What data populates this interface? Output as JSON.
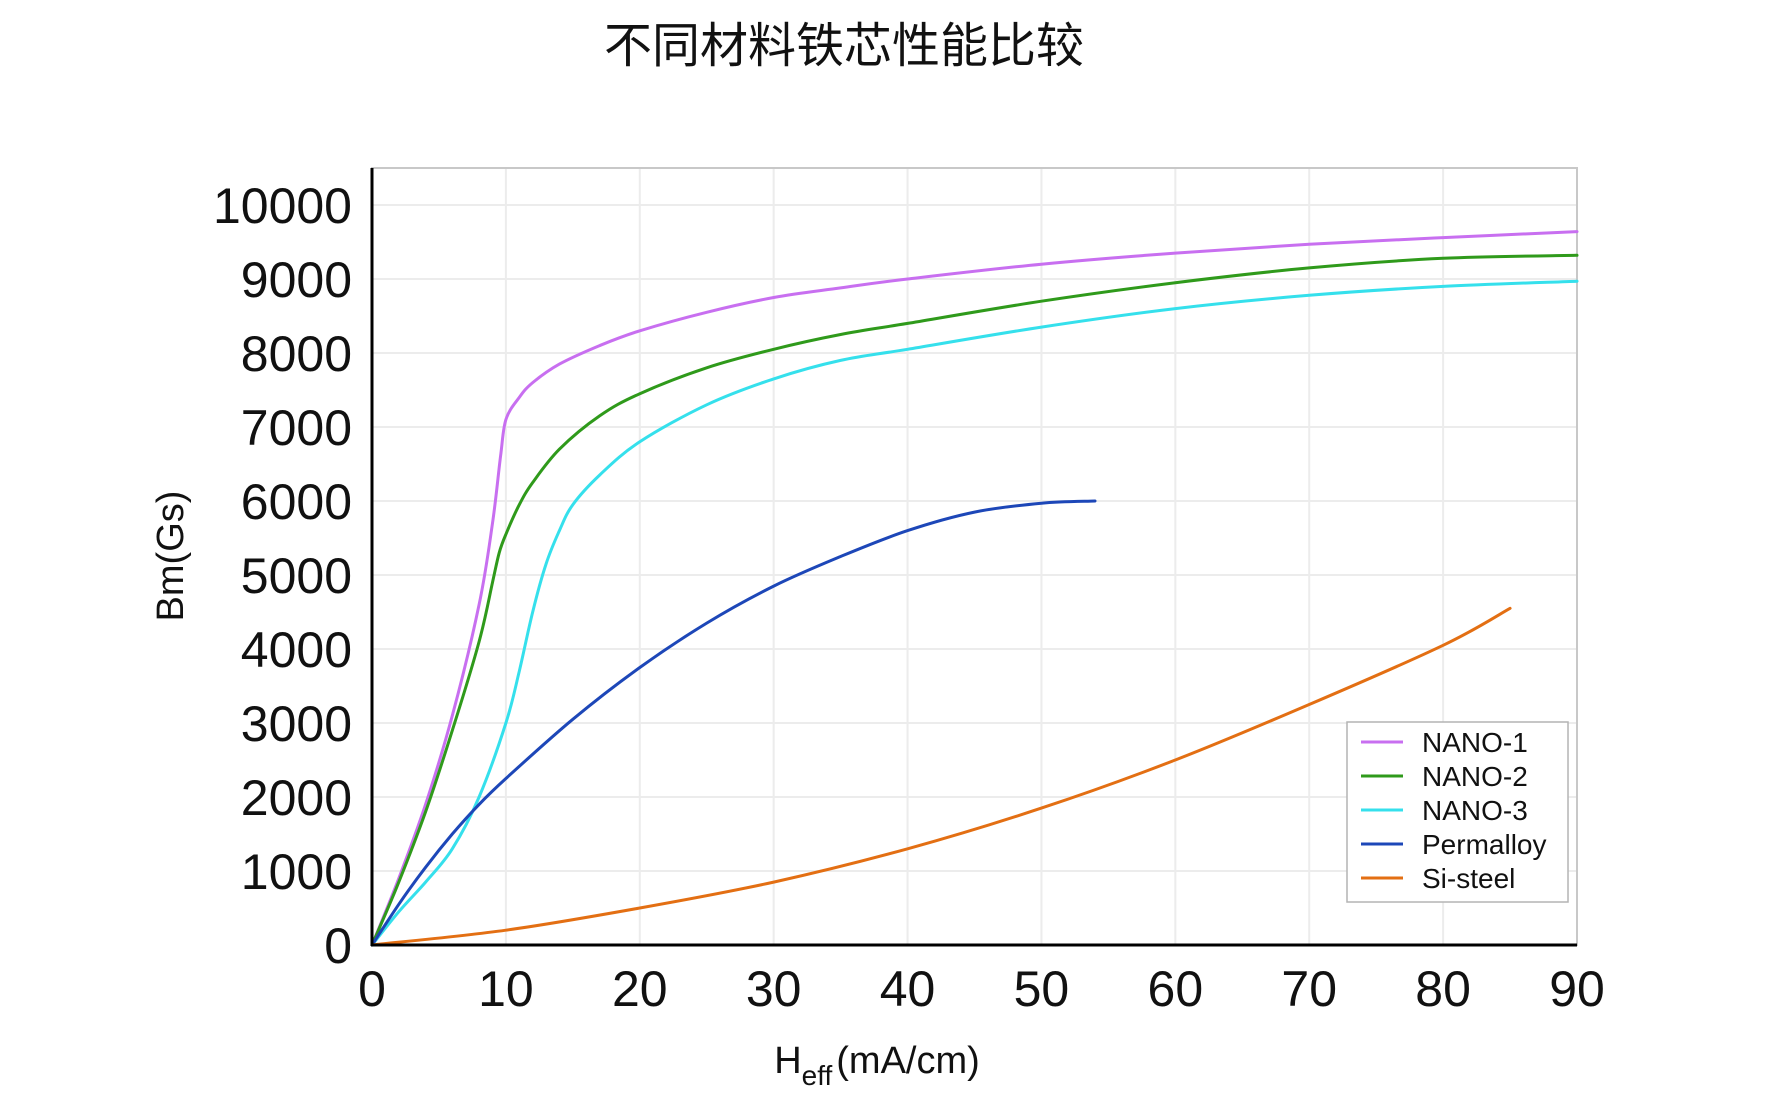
{
  "chart_data": {
    "type": "line",
    "title": "不同材料铁芯性能比较",
    "xlabel": {
      "main": "H",
      "sub": "eff",
      "rest": "(mA/cm)"
    },
    "ylabel": "Bm(Gs)",
    "xlim": [
      0,
      90
    ],
    "ylim": [
      0,
      10500
    ],
    "xticks": [
      "0",
      "10",
      "20",
      "30",
      "40",
      "50",
      "60",
      "70",
      "80",
      "90"
    ],
    "yticks": [
      "0",
      "1000",
      "2000",
      "3000",
      "4000",
      "5000",
      "6000",
      "7000",
      "8000",
      "9000",
      "10000"
    ],
    "grid": true,
    "legend_position": "bottom-right",
    "series": [
      {
        "name": "NANO-1",
        "color": "#c86ff0",
        "x": [
          0,
          2,
          4,
          6,
          8,
          9,
          9.6,
          10,
          11,
          12,
          14,
          17,
          20,
          25,
          30,
          35,
          40,
          50,
          60,
          70,
          80,
          90
        ],
        "y": [
          0,
          900,
          1900,
          3100,
          4600,
          5700,
          6600,
          7100,
          7400,
          7600,
          7850,
          8100,
          8300,
          8550,
          8750,
          8880,
          9000,
          9200,
          9350,
          9470,
          9560,
          9640
        ]
      },
      {
        "name": "NANO-2",
        "color": "#2f9a1b",
        "x": [
          0,
          2,
          4,
          6,
          8,
          9,
          9.5,
          10,
          11,
          12,
          14,
          17,
          20,
          25,
          30,
          35,
          40,
          50,
          60,
          70,
          80,
          90
        ],
        "y": [
          0,
          850,
          1800,
          2900,
          4100,
          4900,
          5300,
          5550,
          5950,
          6250,
          6700,
          7150,
          7450,
          7800,
          8050,
          8250,
          8400,
          8700,
          8950,
          9150,
          9280,
          9320
        ]
      },
      {
        "name": "NANO-3",
        "color": "#35e0ec",
        "x": [
          0,
          2,
          4,
          6,
          8,
          10,
          11,
          12,
          13,
          14,
          15,
          17,
          20,
          25,
          30,
          35,
          40,
          50,
          60,
          70,
          80,
          90
        ],
        "y": [
          0,
          450,
          850,
          1300,
          2000,
          3000,
          3700,
          4500,
          5150,
          5600,
          5950,
          6350,
          6800,
          7300,
          7650,
          7900,
          8050,
          8350,
          8600,
          8780,
          8900,
          8970
        ]
      },
      {
        "name": "Permalloy",
        "color": "#1d47b8",
        "x": [
          0,
          2,
          4,
          6,
          8,
          10,
          15,
          20,
          25,
          30,
          35,
          40,
          45,
          50,
          54
        ],
        "y": [
          0,
          550,
          1050,
          1500,
          1900,
          2250,
          3050,
          3750,
          4350,
          4850,
          5250,
          5600,
          5850,
          5970,
          6000
        ]
      },
      {
        "name": "Si-steel",
        "color": "#e36f13",
        "x": [
          0,
          10,
          20,
          30,
          40,
          50,
          60,
          70,
          80,
          85
        ],
        "y": [
          0,
          200,
          500,
          850,
          1300,
          1850,
          2500,
          3250,
          4050,
          4550
        ]
      }
    ]
  }
}
